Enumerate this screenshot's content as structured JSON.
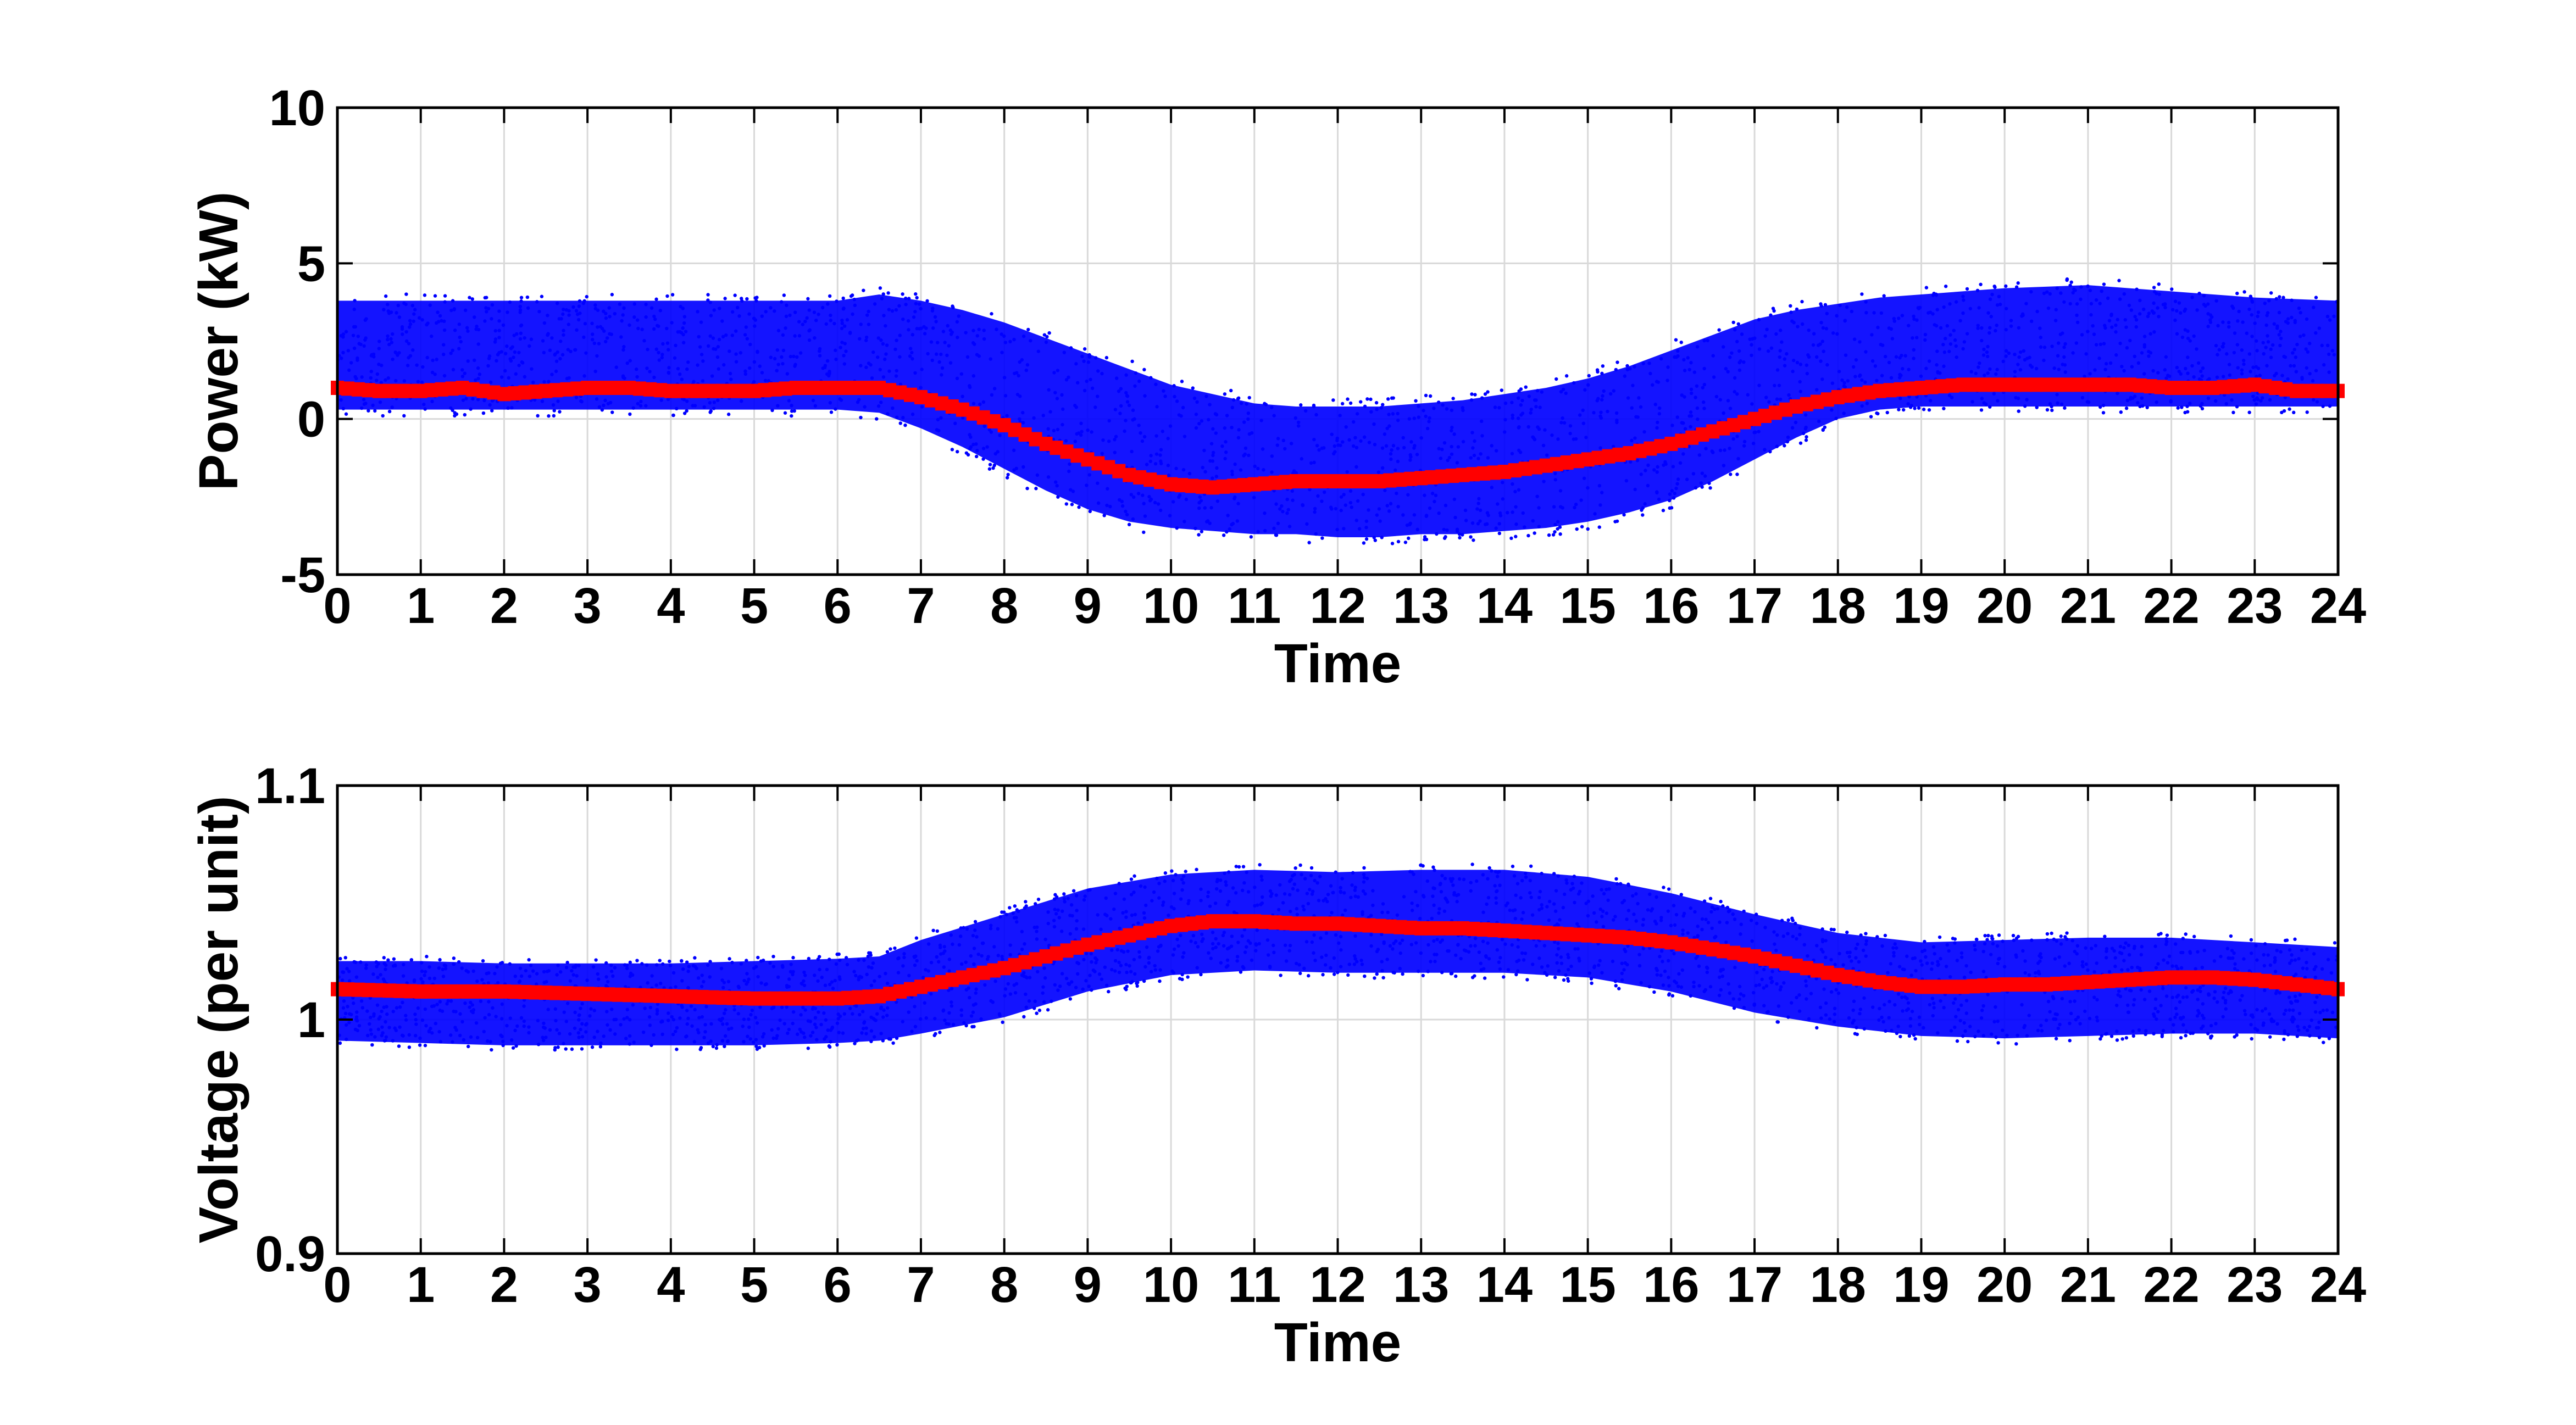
{
  "chart_data": [
    {
      "type": "scatter",
      "title": "",
      "xlabel": "Time",
      "ylabel": "Power (kW)",
      "xlim": [
        0,
        24
      ],
      "ylim": [
        -5,
        10
      ],
      "xticks": [
        "0",
        "1",
        "2",
        "3",
        "4",
        "5",
        "6",
        "7",
        "8",
        "9",
        "10",
        "11",
        "12",
        "13",
        "14",
        "15",
        "16",
        "17",
        "18",
        "19",
        "20",
        "21",
        "22",
        "23",
        "24"
      ],
      "yticks": [
        "-5",
        "0",
        "5",
        "10"
      ],
      "grid": true,
      "legend": "none",
      "colors": {
        "samples": "#0000ff",
        "mean": "#ff0000"
      },
      "series": [
        {
          "role": "samples",
          "color": "#0000ff",
          "x": [
            0,
            1,
            2,
            3,
            4,
            5,
            6,
            6.5,
            7,
            7.5,
            8,
            8.5,
            9,
            9.5,
            10,
            10.5,
            11,
            11.5,
            12,
            12.5,
            13,
            13.5,
            14,
            14.5,
            15,
            15.5,
            16,
            16.5,
            17,
            17.5,
            18,
            18.5,
            19,
            20,
            21,
            22,
            23,
            24
          ],
          "lower": [
            0.3,
            0.3,
            0.3,
            0.3,
            0.3,
            0.3,
            0.3,
            0.2,
            -0.3,
            -0.9,
            -1.6,
            -2.3,
            -2.9,
            -3.3,
            -3.5,
            -3.6,
            -3.7,
            -3.7,
            -3.8,
            -3.8,
            -3.7,
            -3.7,
            -3.6,
            -3.5,
            -3.3,
            -3.0,
            -2.6,
            -2.0,
            -1.3,
            -0.6,
            0.0,
            0.3,
            0.4,
            0.4,
            0.4,
            0.4,
            0.4,
            0.4
          ],
          "upper": [
            3.8,
            3.8,
            3.8,
            3.8,
            3.8,
            3.8,
            3.8,
            4.0,
            3.8,
            3.5,
            3.1,
            2.6,
            2.1,
            1.6,
            1.1,
            0.8,
            0.5,
            0.4,
            0.4,
            0.4,
            0.5,
            0.6,
            0.8,
            1.0,
            1.3,
            1.7,
            2.2,
            2.7,
            3.2,
            3.5,
            3.7,
            3.9,
            4.0,
            4.2,
            4.3,
            4.1,
            3.9,
            3.8
          ]
        },
        {
          "role": "mean",
          "color": "#ff0000",
          "x": [
            0,
            0.5,
            1,
            1.5,
            2,
            2.5,
            3,
            3.5,
            4,
            4.5,
            5,
            5.5,
            6,
            6.5,
            7,
            7.5,
            8,
            8.5,
            9,
            9.5,
            10,
            10.5,
            11,
            11.5,
            12,
            12.5,
            13,
            13.5,
            14,
            14.5,
            15,
            15.5,
            16,
            16.5,
            17,
            17.5,
            18,
            18.5,
            19,
            19.5,
            20,
            20.5,
            21,
            21.5,
            22,
            22.5,
            23,
            23.5,
            24
          ],
          "values": [
            1.0,
            0.9,
            0.9,
            1.0,
            0.8,
            0.9,
            1.0,
            1.0,
            0.9,
            0.9,
            0.9,
            1.0,
            1.0,
            1.0,
            0.7,
            0.3,
            -0.2,
            -0.8,
            -1.3,
            -1.8,
            -2.1,
            -2.2,
            -2.1,
            -2.0,
            -2.0,
            -2.0,
            -1.9,
            -1.8,
            -1.7,
            -1.5,
            -1.3,
            -1.1,
            -0.8,
            -0.4,
            0.0,
            0.4,
            0.7,
            0.9,
            1.0,
            1.1,
            1.1,
            1.1,
            1.1,
            1.1,
            1.0,
            1.0,
            1.1,
            0.9,
            0.9
          ]
        }
      ]
    },
    {
      "type": "scatter",
      "title": "",
      "xlabel": "Time",
      "ylabel": "Voltage (per unit)",
      "xlim": [
        0,
        24
      ],
      "ylim": [
        0.9,
        1.1
      ],
      "xticks": [
        "0",
        "1",
        "2",
        "3",
        "4",
        "5",
        "6",
        "7",
        "8",
        "9",
        "10",
        "11",
        "12",
        "13",
        "14",
        "15",
        "16",
        "17",
        "18",
        "19",
        "20",
        "21",
        "22",
        "23",
        "24"
      ],
      "yticks": [
        "0.9",
        "1",
        "1.1"
      ],
      "grid": true,
      "legend": "none",
      "colors": {
        "samples": "#0000ff",
        "mean": "#ff0000"
      },
      "series": [
        {
          "role": "samples",
          "color": "#0000ff",
          "x": [
            0,
            1,
            2,
            3,
            4,
            5,
            6,
            6.5,
            7,
            8,
            9,
            10,
            11,
            12,
            13,
            14,
            15,
            16,
            17,
            18,
            19,
            20,
            21,
            22,
            23,
            24
          ],
          "lower": [
            0.991,
            0.99,
            0.989,
            0.989,
            0.989,
            0.989,
            0.99,
            0.991,
            0.994,
            1.001,
            1.012,
            1.019,
            1.021,
            1.02,
            1.02,
            1.02,
            1.018,
            1.012,
            1.003,
            0.997,
            0.993,
            0.992,
            0.993,
            0.994,
            0.994,
            0.992
          ],
          "upper": [
            1.025,
            1.025,
            1.024,
            1.024,
            1.024,
            1.025,
            1.026,
            1.027,
            1.034,
            1.045,
            1.056,
            1.062,
            1.064,
            1.063,
            1.064,
            1.064,
            1.061,
            1.054,
            1.045,
            1.037,
            1.033,
            1.034,
            1.035,
            1.035,
            1.033,
            1.031
          ]
        },
        {
          "role": "mean",
          "color": "#ff0000",
          "x": [
            0,
            1,
            2,
            3,
            4,
            5,
            6,
            6.5,
            7,
            7.5,
            8,
            8.5,
            9,
            9.5,
            10,
            10.5,
            11,
            11.5,
            12,
            12.5,
            13,
            13.5,
            14,
            14.5,
            15,
            15.5,
            16,
            16.5,
            17,
            17.5,
            18,
            18.5,
            19,
            19.5,
            20,
            20.5,
            21,
            21.5,
            22,
            22.5,
            23,
            23.5,
            24
          ],
          "values": [
            1.013,
            1.012,
            1.012,
            1.011,
            1.01,
            1.009,
            1.009,
            1.01,
            1.014,
            1.018,
            1.022,
            1.027,
            1.032,
            1.036,
            1.04,
            1.042,
            1.042,
            1.041,
            1.041,
            1.04,
            1.039,
            1.039,
            1.038,
            1.037,
            1.036,
            1.035,
            1.033,
            1.03,
            1.027,
            1.023,
            1.019,
            1.016,
            1.014,
            1.014,
            1.015,
            1.015,
            1.016,
            1.017,
            1.018,
            1.018,
            1.017,
            1.015,
            1.013
          ]
        }
      ]
    }
  ]
}
